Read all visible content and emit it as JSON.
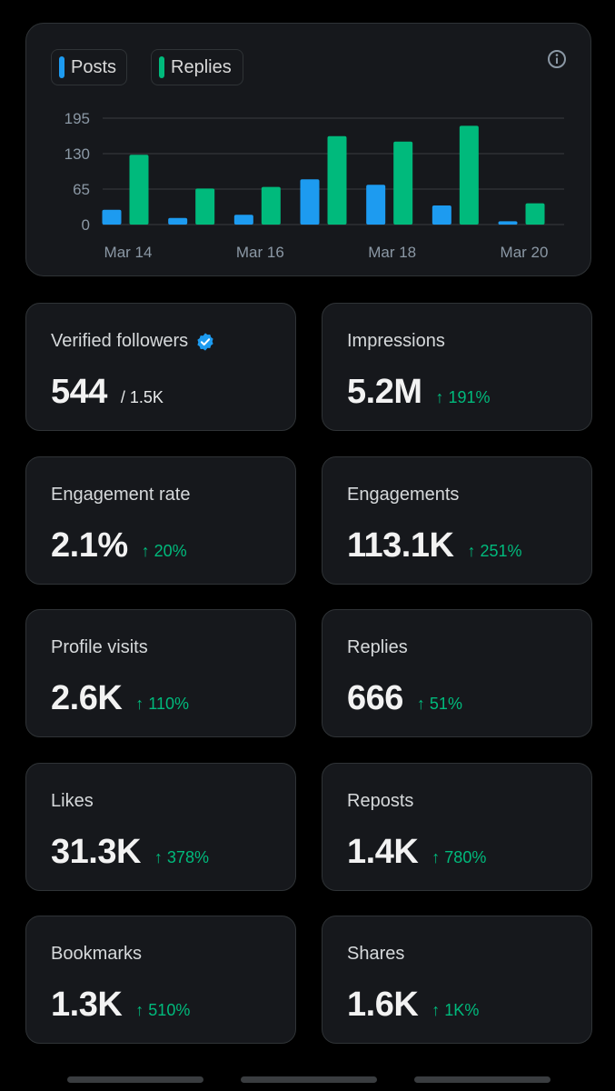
{
  "legend": {
    "posts_label": "Posts",
    "replies_label": "Replies"
  },
  "colors": {
    "posts": "#1d9bf0",
    "replies": "#00ba7c",
    "positive": "#00ba7c",
    "verified": "#1d9bf0"
  },
  "icons": {
    "info": "info-icon",
    "verified": "verified-badge-icon",
    "arrow_up": "arrow-up-icon"
  },
  "chart_data": {
    "type": "bar",
    "categories": [
      "Mar 14",
      "Mar 15",
      "Mar 16",
      "Mar 17",
      "Mar 18",
      "Mar 19",
      "Mar 20"
    ],
    "series": [
      {
        "name": "Posts",
        "values": [
          27,
          12,
          18,
          83,
          73,
          35,
          6
        ]
      },
      {
        "name": "Replies",
        "values": [
          128,
          66,
          69,
          162,
          152,
          181,
          39
        ]
      }
    ],
    "x_tick_labels": [
      "Mar 14",
      "Mar 16",
      "Mar 18",
      "Mar 20"
    ],
    "y_ticks": [
      0,
      65,
      130,
      195
    ],
    "ylim": [
      0,
      195
    ],
    "grid": true,
    "legend_position": "top-left",
    "title": "",
    "xlabel": "",
    "ylabel": ""
  },
  "metrics": [
    {
      "label": "Verified followers",
      "value": "544",
      "total": "/ 1.5K"
    },
    {
      "label": "Impressions",
      "value": "5.2M",
      "change": "191%"
    },
    {
      "label": "Engagement rate",
      "value": "2.1%",
      "change": "20%"
    },
    {
      "label": "Engagements",
      "value": "113.1K",
      "change": "251%"
    },
    {
      "label": "Profile visits",
      "value": "2.6K",
      "change": "110%"
    },
    {
      "label": "Replies",
      "value": "666",
      "change": "51%"
    },
    {
      "label": "Likes",
      "value": "31.3K",
      "change": "378%"
    },
    {
      "label": "Reposts",
      "value": "1.4K",
      "change": "780%"
    },
    {
      "label": "Bookmarks",
      "value": "1.3K",
      "change": "510%"
    },
    {
      "label": "Shares",
      "value": "1.6K",
      "change": "1K%"
    }
  ]
}
